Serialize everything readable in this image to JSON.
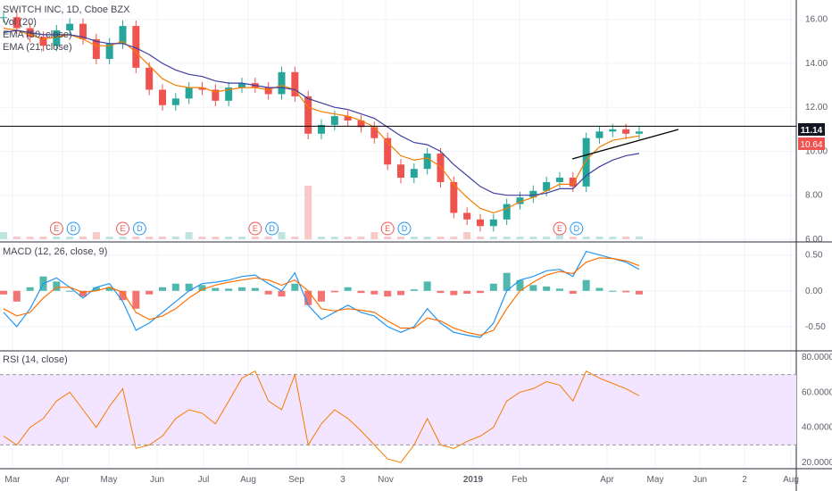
{
  "header": {
    "symbol_line": "SWITCH INC, 1D, Cboe BZX",
    "indicators": [
      "Vol (20)",
      "EMA (50, close)",
      "EMA (21, close)"
    ]
  },
  "macd_title": "MACD (12, 26, close, 9)",
  "rsi_title": "RSI (14, close)",
  "price_labels": {
    "last": "11.14",
    "ema": "10.64"
  },
  "colors": {
    "up": "#26a69a",
    "down": "#ef5350",
    "ema21": "#f57c00",
    "ema50": "#3f3f9f",
    "macd": "#2196f3",
    "signal": "#ff6d00",
    "rsi": "#f57c00",
    "rsi_band": "#f3e5ff",
    "hline": "#000000"
  },
  "chart_data": [
    {
      "type": "candlestick",
      "title": "SWITCH INC, 1D, Cboe BZX",
      "x_tick_labels": [
        "Mar",
        "Apr",
        "May",
        "Jun",
        "Jul",
        "Aug",
        "Sep",
        "3",
        "Nov",
        "2019",
        "Feb",
        "Apr",
        "May",
        "Jun",
        "2",
        "Aug"
      ],
      "y_ticks": [
        "6.00",
        "8.00",
        "10.00",
        "12.00",
        "14.00",
        "16.00"
      ],
      "ylim": [
        6,
        16.8
      ],
      "horizontal_line": 11.14,
      "close_approx": [
        16.1,
        15.6,
        15.2,
        14.8,
        15.5,
        15.8,
        15.1,
        14.2,
        14.9,
        15.7,
        13.8,
        12.8,
        12.1,
        12.4,
        12.9,
        12.8,
        12.3,
        12.9,
        13.1,
        12.9,
        12.6,
        13.6,
        12.5,
        10.8,
        11.2,
        11.6,
        11.4,
        11.1,
        10.6,
        9.4,
        8.8,
        9.2,
        9.9,
        8.6,
        7.2,
        6.9,
        6.6,
        6.9,
        7.6,
        7.9,
        8.2,
        8.6,
        8.8,
        8.4,
        10.6,
        10.9,
        11.0,
        10.8,
        10.9
      ],
      "ema21_approx": [
        15.6,
        15.5,
        15.3,
        15.1,
        15.2,
        15.3,
        15.1,
        14.8,
        14.8,
        15.0,
        14.5,
        13.9,
        13.3,
        13.0,
        12.9,
        12.9,
        12.7,
        12.8,
        12.9,
        12.9,
        12.8,
        13.0,
        12.8,
        12.0,
        11.8,
        11.7,
        11.6,
        11.4,
        11.1,
        10.4,
        9.8,
        9.6,
        9.7,
        9.3,
        8.5,
        7.9,
        7.4,
        7.2,
        7.4,
        7.7,
        7.9,
        8.2,
        8.5,
        8.5,
        9.6,
        10.2,
        10.5,
        10.6,
        10.7
      ],
      "ema50_approx": [
        15.4,
        15.5,
        15.4,
        15.3,
        15.3,
        15.3,
        15.2,
        15.0,
        14.9,
        14.9,
        14.7,
        14.4,
        14.0,
        13.7,
        13.5,
        13.4,
        13.2,
        13.1,
        13.1,
        13.0,
        12.9,
        12.9,
        12.8,
        12.4,
        12.2,
        12.0,
        11.9,
        11.7,
        11.5,
        11.1,
        10.7,
        10.4,
        10.3,
        10.0,
        9.4,
        8.9,
        8.4,
        8.1,
        8.0,
        8.0,
        8.0,
        8.1,
        8.3,
        8.3,
        8.9,
        9.3,
        9.6,
        9.8,
        9.9
      ],
      "events": [
        "E",
        "D",
        "E",
        "D",
        "E",
        "D",
        "E",
        "D",
        "E",
        "D"
      ]
    },
    {
      "type": "bar+line",
      "title": "MACD (12, 26, close, 9)",
      "y_ticks": [
        "0.50",
        "0.00",
        "-0.50"
      ],
      "ylim": [
        -0.8,
        0.62
      ],
      "macd_approx": [
        -0.3,
        -0.5,
        -0.25,
        0.1,
        0.18,
        0.05,
        -0.1,
        0.05,
        0.1,
        -0.15,
        -0.55,
        -0.45,
        -0.3,
        -0.15,
        0.0,
        0.1,
        0.12,
        0.15,
        0.2,
        0.22,
        0.1,
        0.0,
        0.25,
        -0.2,
        -0.4,
        -0.3,
        -0.2,
        -0.3,
        -0.35,
        -0.5,
        -0.58,
        -0.5,
        -0.25,
        -0.45,
        -0.58,
        -0.62,
        -0.65,
        -0.45,
        0.0,
        0.15,
        0.2,
        0.28,
        0.3,
        0.2,
        0.55,
        0.5,
        0.45,
        0.4,
        0.3
      ],
      "signal_approx": [
        -0.25,
        -0.35,
        -0.3,
        -0.1,
        0.05,
        0.05,
        -0.02,
        0.0,
        0.05,
        -0.02,
        -0.3,
        -0.4,
        -0.35,
        -0.25,
        -0.1,
        0.02,
        0.08,
        0.12,
        0.15,
        0.18,
        0.15,
        0.08,
        0.15,
        0.0,
        -0.25,
        -0.28,
        -0.25,
        -0.27,
        -0.3,
        -0.42,
        -0.52,
        -0.52,
        -0.38,
        -0.42,
        -0.52,
        -0.58,
        -0.62,
        -0.55,
        -0.25,
        0.0,
        0.12,
        0.22,
        0.27,
        0.24,
        0.4,
        0.46,
        0.45,
        0.42,
        0.35
      ]
    },
    {
      "type": "line",
      "title": "RSI (14, close)",
      "y_ticks": [
        "80.0000",
        "60.0000",
        "40.0000",
        "20.0000"
      ],
      "ylim": [
        18,
        82
      ],
      "bands": [
        30,
        70
      ],
      "rsi_approx": [
        35,
        30,
        40,
        45,
        55,
        60,
        50,
        40,
        52,
        62,
        28,
        30,
        35,
        45,
        50,
        48,
        42,
        55,
        68,
        72,
        55,
        50,
        70,
        30,
        42,
        50,
        45,
        38,
        30,
        22,
        20,
        30,
        45,
        30,
        28,
        32,
        35,
        40,
        55,
        60,
        62,
        66,
        64,
        55,
        72,
        68,
        65,
        62,
        58
      ]
    }
  ]
}
